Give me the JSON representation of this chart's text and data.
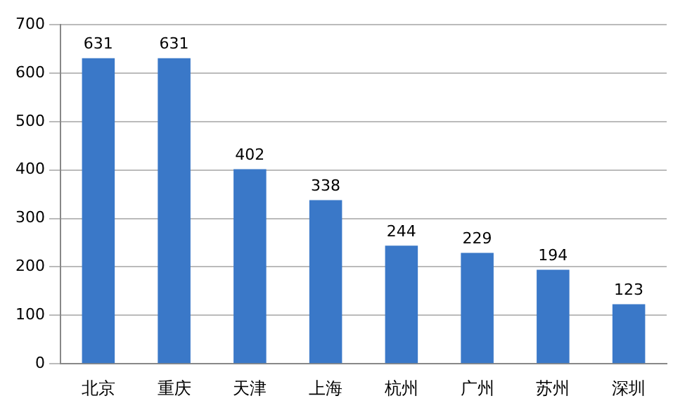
{
  "chart_data": {
    "type": "bar",
    "categories": [
      "北京",
      "重庆",
      "天津",
      "上海",
      "杭州",
      "广州",
      "苏州",
      "深圳"
    ],
    "values": [
      631,
      631,
      402,
      338,
      244,
      229,
      194,
      123
    ],
    "color": "#3a78c8",
    "ylim": [
      0,
      700
    ],
    "yticks": [
      0,
      100,
      200,
      300,
      400,
      500,
      600,
      700
    ],
    "grid": "y",
    "data_labels": true,
    "legend": false
  }
}
